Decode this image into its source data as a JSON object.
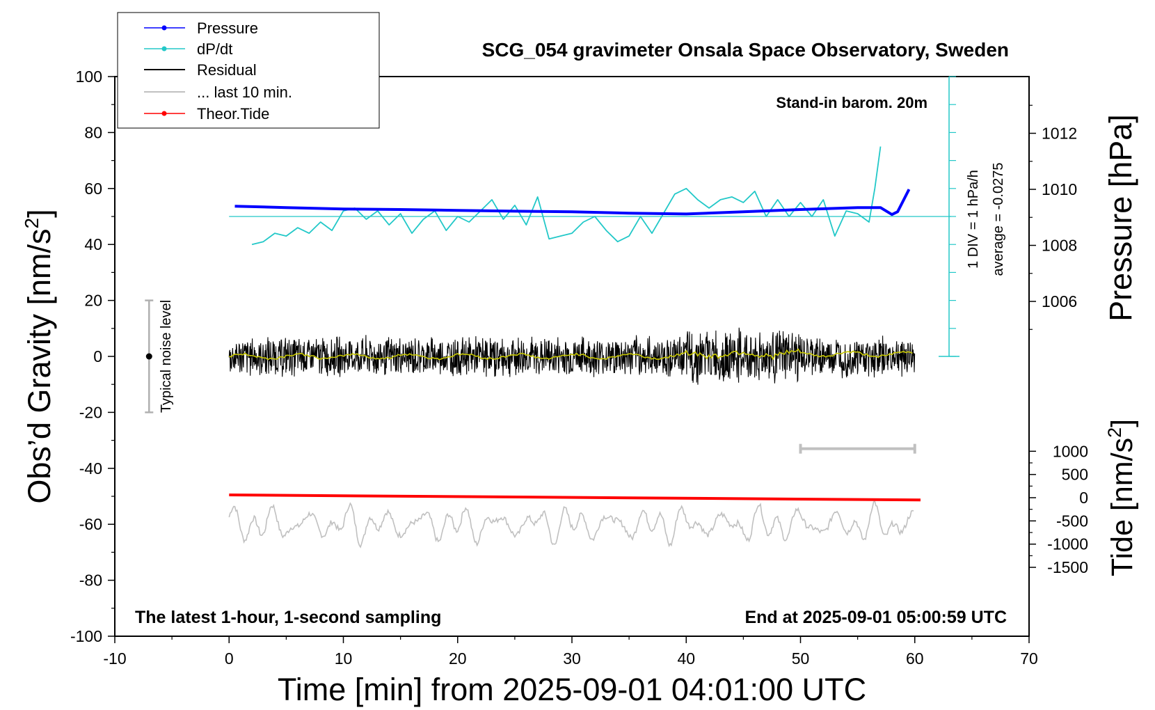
{
  "chart_data": {
    "type": "line",
    "title": "SCG_054 gravimeter Onsala Space Observatory, Sweden",
    "xlabel": "Time [min] from 2025-09-01 04:01:00 UTC",
    "ylabel_left": "Obs’d Gravity [nm/s",
    "ylabel_left_sup": "2",
    "ylabel_left_end": "]",
    "ylabel_pressure": "Pressure [hPa]",
    "ylabel_tide": "Tide [nm/s",
    "ylabel_tide_sup": "2",
    "ylabel_tide_end": "]",
    "xlim": [
      -10,
      70
    ],
    "ylim": [
      -100,
      100
    ],
    "x_ticks": [
      "-10",
      "0",
      "10",
      "20",
      "30",
      "40",
      "50",
      "60",
      "70"
    ],
    "y_ticks": [
      "100",
      "80",
      "60",
      "40",
      "20",
      "0",
      "-20",
      "-40",
      "-60",
      "-80",
      "-100"
    ],
    "pressure_ticks": [
      "1012",
      "1010",
      "1008",
      "1006"
    ],
    "pressure_tick_values": [
      1012,
      1010,
      1008,
      1006
    ],
    "tide_ticks": [
      "1000",
      "500",
      "0",
      "-500",
      "-1000",
      "-1500"
    ],
    "tide_tick_values": [
      1000,
      500,
      0,
      -500,
      -1000,
      -1500
    ],
    "legend": {
      "position": "top-left",
      "items": [
        {
          "label": "Pressure",
          "color": "#0000ff",
          "marker": true
        },
        {
          "label": "dP/dt",
          "color": "#22c8c8",
          "marker": true
        },
        {
          "label": "Residual",
          "color": "#000000",
          "marker": false
        },
        {
          "label": "... last 10 min.",
          "color": "#c0c0c0",
          "marker": false
        },
        {
          "label": "Theor.Tide",
          "color": "#ff0000",
          "marker": true
        }
      ]
    },
    "annotations": {
      "barometer": "Stand-in barom. 20m",
      "dpdt_scale": "1 DIV = 1 hPa/h",
      "dpdt_average": "average = -0.0275",
      "noise": "Typical noise level",
      "bottom_left": "The latest 1-hour, 1-second sampling",
      "bottom_right": "End at 2025-09-01 05:00:59 UTC"
    },
    "noise_bar": {
      "x": -7,
      "y_low": -20,
      "y_high": 20
    },
    "window_bar": {
      "x_start": 50,
      "x_end": 60,
      "y": -33
    },
    "series": [
      {
        "name": "Pressure",
        "color": "#0000ff",
        "unit": "hPa",
        "x": [
          0.5,
          5,
          10,
          15,
          20,
          25,
          30,
          35,
          40,
          45,
          50,
          55,
          57,
          58,
          58.5,
          59,
          59.5
        ],
        "values": [
          1009.4,
          1009.35,
          1009.3,
          1009.28,
          1009.25,
          1009.22,
          1009.2,
          1009.15,
          1009.12,
          1009.2,
          1009.28,
          1009.35,
          1009.35,
          1009.1,
          1009.2,
          1009.6,
          1010.0
        ]
      },
      {
        "name": "dP/dt",
        "color": "#22c8c8",
        "x": [
          2,
          3,
          4,
          5,
          6,
          7,
          8,
          9,
          10,
          11,
          12,
          13,
          14,
          15,
          16,
          17,
          18,
          19,
          20,
          21,
          22,
          23,
          24,
          25,
          26,
          27,
          28,
          29,
          30,
          31,
          32,
          33,
          34,
          35,
          36,
          37,
          38,
          39,
          40,
          41,
          42,
          43,
          44,
          45,
          46,
          47,
          48,
          49,
          50,
          51,
          52,
          53,
          54,
          55,
          56,
          56.5,
          57
        ],
        "values": [
          40,
          41,
          44,
          43,
          46,
          44,
          48,
          45,
          52,
          53,
          49,
          52,
          47,
          51,
          44,
          49,
          52,
          45,
          50,
          48,
          52,
          56,
          49,
          54,
          47,
          57,
          42,
          43,
          44,
          48,
          50,
          45,
          41,
          43,
          50,
          44,
          51,
          58,
          60,
          56,
          53,
          56,
          57,
          55,
          59,
          50,
          56,
          50,
          55,
          50,
          56,
          43,
          52,
          51,
          48,
          60,
          75
        ]
      },
      {
        "name": "Residual",
        "color": "#000000",
        "x_range": [
          0,
          60
        ],
        "amplitude": 8,
        "style": "noise"
      },
      {
        "name": "... last 10 min.",
        "color": "#c0c0c0",
        "x_range": [
          0,
          60
        ],
        "center": -60,
        "amplitude": 9,
        "style": "oscillation"
      },
      {
        "name": "Theor.Tide",
        "color": "#ff0000",
        "unit": "nm/s2",
        "x": [
          0,
          60.5
        ],
        "values": [
          60,
          -50
        ]
      }
    ]
  }
}
